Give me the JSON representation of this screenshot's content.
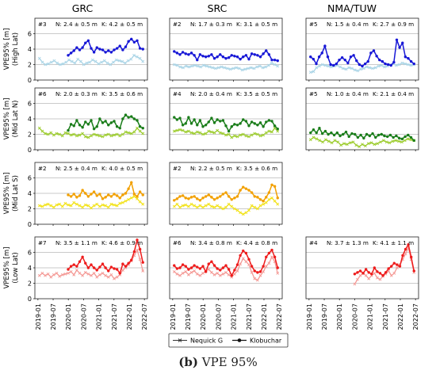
{
  "figure": {
    "caption_label": "(b)",
    "caption_text": "VPE 95%",
    "legend": [
      {
        "label": "Nequick G",
        "marker": "x"
      },
      {
        "label": "Klobuchar",
        "marker": "dot"
      }
    ]
  },
  "chart_data": {
    "type": "line",
    "columns": [
      "GRC",
      "SRC",
      "NMA/TUW"
    ],
    "rows": [
      {
        "ylabel": "VPE95% [m]",
        "sublabel": "(High Lat)",
        "nequick_color": "#a9d4e6",
        "klobuchar_color": "#1717d6"
      },
      {
        "ylabel": "VPE95% [m]",
        "sublabel": "(Mid Lat N)",
        "nequick_color": "#9ccc2c",
        "klobuchar_color": "#1a7d1a"
      },
      {
        "ylabel": "VPE95% [m]",
        "sublabel": "(Mid Lat S)",
        "nequick_color": "#f2e216",
        "klobuchar_color": "#f2a000"
      },
      {
        "ylabel": "VPE95% [m]",
        "sublabel": "(Low Lat)",
        "nequick_color": "#f49a96",
        "klobuchar_color": "#ee1c1c"
      }
    ],
    "ylim": [
      0,
      8
    ],
    "yticks": [
      0,
      2,
      4,
      6
    ],
    "grid": true,
    "xticks": [
      "2019-01",
      "2019-07",
      "2020-01",
      "2020-07",
      "2021-01",
      "2021-07",
      "2022-01",
      "2022-07"
    ],
    "panels": [
      {
        "row": 0,
        "col": 0,
        "label": "#3",
        "N": "N: 2.4 ± 0.5 m",
        "K": "K: 4.2 ± 0.5 m",
        "x_start": 2019.05,
        "x_end": 2022.45,
        "nequick": [
          2.8,
          2.3,
          2.0,
          2.1,
          2.3,
          2.5,
          2.2,
          2.0,
          2.1,
          2.3,
          2.6,
          2.4,
          2.2,
          2.7,
          2.4,
          2.0,
          2.2,
          2.3,
          2.6,
          2.4,
          2.1,
          2.3,
          2.5,
          2.2,
          2.0,
          2.3,
          2.6,
          2.5,
          2.4,
          2.2,
          2.5,
          2.7,
          3.2,
          3.0,
          2.8,
          2.4
        ],
        "klobuchar": [
          null,
          null,
          null,
          null,
          null,
          null,
          null,
          null,
          null,
          null,
          3.2,
          3.5,
          3.8,
          4.2,
          3.9,
          4.2,
          4.8,
          5.1,
          4.1,
          3.6,
          4.2,
          4.0,
          3.9,
          3.6,
          3.8,
          3.6,
          3.9,
          4.1,
          4.4,
          3.9,
          4.3,
          5.0,
          5.3,
          4.9,
          5.1,
          4.1,
          4.0
        ]
      },
      {
        "row": 0,
        "col": 1,
        "label": "#2",
        "N": "N: 1.7 ± 0.3 m",
        "K": "K: 3.1 ± 0.5 m",
        "x_start": 2019.05,
        "x_end": 2022.45,
        "nequick": [
          2.0,
          1.9,
          1.7,
          1.6,
          1.8,
          1.7,
          1.8,
          1.9,
          1.8,
          1.7,
          1.9,
          1.8,
          1.7,
          1.6,
          1.5,
          1.6,
          1.7,
          1.6,
          1.5,
          1.4,
          1.5,
          1.6,
          1.5,
          1.3,
          1.4,
          1.5,
          1.6,
          1.5,
          1.7,
          1.8,
          1.6,
          1.7,
          1.9,
          2.2,
          2.0,
          1.8
        ],
        "klobuchar": [
          3.7,
          3.5,
          3.3,
          3.6,
          3.4,
          3.3,
          3.5,
          3.2,
          2.6,
          3.3,
          3.1,
          3.0,
          3.1,
          3.3,
          2.8,
          3.0,
          3.3,
          3.0,
          2.8,
          2.9,
          3.2,
          3.1,
          3.0,
          2.7,
          3.0,
          3.2,
          2.7,
          3.4,
          3.3,
          3.2,
          3.0,
          3.4,
          3.8,
          3.3,
          2.6,
          2.6,
          2.5
        ]
      },
      {
        "row": 0,
        "col": 2,
        "label": "#5",
        "N": "N: 1.5 ± 0.4 m",
        "K": "K: 2.7 ± 0.9 m",
        "x_start": 2019.05,
        "x_end": 2022.45,
        "nequick": [
          1.0,
          1.1,
          1.6,
          1.8,
          2.0,
          1.9,
          1.8,
          1.7,
          1.8,
          1.9,
          1.7,
          1.5,
          1.4,
          1.6,
          1.5,
          1.3,
          1.2,
          1.4,
          1.5,
          1.7,
          1.6,
          1.5,
          1.6,
          1.8,
          1.9,
          1.7,
          1.8,
          2.0,
          2.1,
          1.9,
          2.0,
          2.2,
          2.1,
          2.0,
          1.9,
          2.0
        ],
        "klobuchar": [
          3.0,
          2.7,
          2.1,
          3.0,
          3.5,
          4.4,
          3.0,
          2.0,
          1.9,
          2.1,
          2.6,
          2.9,
          2.6,
          2.2,
          3.0,
          3.2,
          2.5,
          2.0,
          1.8,
          2.1,
          2.4,
          3.5,
          3.8,
          3.1,
          2.6,
          2.4,
          2.1,
          2.0,
          1.9,
          2.3,
          5.2,
          4.2,
          4.8,
          3.0,
          2.8,
          2.4,
          2.1
        ]
      },
      {
        "row": 1,
        "col": 0,
        "label": "#6",
        "N": "N: 2.0 ± 0.3 m",
        "K": "K: 3.5 ± 0.6 m",
        "x_start": 2019.05,
        "x_end": 2022.45,
        "nequick": [
          2.8,
          2.4,
          2.1,
          2.0,
          2.2,
          1.9,
          2.1,
          2.0,
          1.8,
          2.2,
          2.1,
          1.9,
          2.0,
          1.8,
          1.9,
          2.1,
          1.7,
          1.6,
          1.8,
          2.0,
          1.9,
          1.8,
          1.7,
          1.9,
          2.0,
          1.8,
          1.9,
          2.0,
          1.8,
          2.0,
          2.3,
          2.2,
          2.1,
          2.3,
          2.8,
          2.4,
          2.1
        ],
        "klobuchar": [
          null,
          null,
          null,
          null,
          null,
          null,
          null,
          null,
          null,
          null,
          2.5,
          3.3,
          3.1,
          3.8,
          3.2,
          2.9,
          3.6,
          3.3,
          3.8,
          2.7,
          3.0,
          4.0,
          3.5,
          3.7,
          3.2,
          3.5,
          3.7,
          3.0,
          2.8,
          4.0,
          4.5,
          4.2,
          4.3,
          4.0,
          3.8,
          3.0,
          2.8
        ]
      },
      {
        "row": 1,
        "col": 1,
        "label": "#4",
        "N": "N: 2.0 ± 0.4 m",
        "K": "K: 3.5 ± 0.5 m",
        "x_start": 2019.05,
        "x_end": 2022.45,
        "nequick": [
          2.4,
          2.5,
          2.6,
          2.5,
          2.3,
          2.4,
          2.2,
          2.1,
          2.3,
          2.2,
          2.0,
          2.1,
          2.4,
          2.3,
          2.2,
          2.5,
          2.2,
          2.1,
          1.9,
          2.0,
          1.6,
          1.8,
          1.7,
          1.9,
          2.0,
          1.8,
          1.7,
          1.9,
          2.1,
          2.0,
          1.8,
          1.9,
          2.2,
          2.4,
          2.3,
          2.8,
          2.4
        ],
        "klobuchar": [
          4.2,
          3.9,
          4.1,
          3.2,
          3.4,
          4.2,
          3.4,
          3.9,
          3.2,
          3.8,
          3.0,
          3.2,
          3.6,
          4.1,
          3.5,
          3.9,
          3.7,
          3.8,
          3.1,
          2.4,
          3.0,
          3.3,
          3.2,
          3.4,
          3.9,
          3.7,
          3.1,
          3.6,
          3.4,
          3.2,
          3.5,
          3.0,
          3.6,
          3.8,
          3.7,
          3.1,
          2.7
        ]
      },
      {
        "row": 1,
        "col": 2,
        "label": "#5",
        "N": "N: 1.0 ± 0.4 m",
        "K": "K: 2.1 ± 0.4 m",
        "x_start": 2019.05,
        "x_end": 2022.45,
        "nequick": [
          1.3,
          1.6,
          1.4,
          1.2,
          1.0,
          1.3,
          1.1,
          0.9,
          1.2,
          1.0,
          0.6,
          0.8,
          0.7,
          0.9,
          1.0,
          0.6,
          0.4,
          0.7,
          0.5,
          0.8,
          0.9,
          0.7,
          0.8,
          1.0,
          1.2,
          1.0,
          0.9,
          1.1,
          1.2,
          1.1,
          1.0,
          1.2,
          1.4,
          1.3,
          1.2
        ],
        "klobuchar": [
          2.2,
          2.6,
          2.2,
          2.8,
          2.1,
          2.4,
          2.0,
          2.2,
          1.9,
          2.2,
          1.8,
          2.0,
          2.3,
          1.7,
          2.1,
          2.0,
          1.6,
          1.9,
          1.5,
          2.0,
          1.8,
          2.1,
          1.6,
          1.9,
          2.0,
          1.8,
          1.7,
          1.9,
          1.6,
          1.8,
          1.5,
          1.4,
          1.7,
          1.9,
          1.6,
          1.2
        ]
      },
      {
        "row": 2,
        "col": 0,
        "label": "#2",
        "N": "N: 2.5 ± 0.4 m",
        "K": "K: 4.0 ± 0.5 m",
        "x_start": 2019.05,
        "x_end": 2022.45,
        "nequick": [
          2.4,
          2.3,
          2.5,
          2.6,
          2.4,
          2.2,
          2.5,
          2.6,
          2.3,
          2.7,
          2.5,
          2.4,
          2.8,
          2.6,
          2.4,
          2.2,
          2.5,
          2.4,
          2.1,
          2.4,
          2.6,
          2.3,
          2.5,
          2.4,
          2.2,
          2.6,
          2.5,
          2.4,
          2.7,
          2.8,
          3.0,
          3.2,
          3.4,
          3.6,
          3.3,
          2.9,
          2.6
        ],
        "klobuchar": [
          null,
          null,
          null,
          null,
          null,
          null,
          null,
          null,
          null,
          null,
          3.8,
          3.6,
          3.9,
          3.5,
          3.7,
          4.4,
          4.0,
          3.6,
          3.9,
          4.2,
          3.7,
          3.9,
          3.3,
          3.5,
          3.8,
          3.6,
          3.9,
          3.7,
          3.4,
          3.8,
          4.0,
          4.6,
          5.4,
          3.9,
          3.6,
          4.2,
          3.8
        ]
      },
      {
        "row": 2,
        "col": 1,
        "label": "#2",
        "N": "N: 2.2 ± 0.5 m",
        "K": "K: 3.5 ± 0.6 m",
        "x_start": 2019.05,
        "x_end": 2022.45,
        "nequick": [
          2.3,
          2.6,
          2.2,
          2.4,
          2.5,
          2.3,
          2.6,
          2.4,
          2.2,
          2.4,
          2.2,
          2.4,
          2.6,
          2.3,
          2.2,
          2.4,
          2.2,
          2.0,
          2.2,
          2.6,
          2.3,
          2.0,
          1.8,
          1.5,
          1.3,
          1.5,
          1.8,
          2.4,
          2.2,
          2.0,
          2.4,
          2.6,
          2.8,
          3.2,
          3.4,
          3.0,
          2.6
        ],
        "klobuchar": [
          3.1,
          3.3,
          3.6,
          3.7,
          3.4,
          3.3,
          3.5,
          3.6,
          3.3,
          3.1,
          3.4,
          3.6,
          3.8,
          3.5,
          3.2,
          3.4,
          3.6,
          3.9,
          4.1,
          3.6,
          3.2,
          3.4,
          3.6,
          4.4,
          4.8,
          4.6,
          4.4,
          4.1,
          3.6,
          3.5,
          3.2,
          3.0,
          3.5,
          4.1,
          5.1,
          4.9,
          3.4
        ]
      },
      {
        "row": 3,
        "col": 0,
        "label": "#7",
        "N": "N: 3.5 ± 1.1 m",
        "K": "K: 4.6 ± 0.9 m",
        "x_start": 2019.05,
        "x_end": 2022.45,
        "nequick": [
          3.0,
          3.3,
          3.0,
          3.2,
          2.8,
          3.1,
          3.3,
          2.9,
          3.1,
          3.2,
          3.3,
          3.5,
          3.1,
          3.7,
          3.3,
          3.0,
          3.4,
          3.2,
          3.0,
          3.3,
          2.8,
          3.1,
          3.3,
          3.0,
          2.8,
          3.1,
          2.6,
          2.8,
          3.1,
          3.7,
          4.0,
          4.4,
          4.9,
          5.6,
          6.3,
          5.1,
          3.6
        ],
        "klobuchar": [
          null,
          null,
          null,
          null,
          null,
          null,
          null,
          null,
          null,
          null,
          3.8,
          4.2,
          4.4,
          4.2,
          4.8,
          5.4,
          4.6,
          4.0,
          4.4,
          4.0,
          3.7,
          4.1,
          4.5,
          4.0,
          3.6,
          4.1,
          3.9,
          3.8,
          3.3,
          4.5,
          4.2,
          4.6,
          5.0,
          6.1,
          7.6,
          6.4,
          4.7
        ]
      },
      {
        "row": 3,
        "col": 1,
        "label": "#6",
        "N": "N: 3.4 ± 0.8 m",
        "K": "K: 4.4 ± 0.8 m",
        "x_start": 2019.05,
        "x_end": 2022.45,
        "nequick": [
          3.5,
          3.2,
          3.0,
          3.3,
          3.5,
          3.1,
          3.4,
          3.6,
          3.2,
          3.0,
          3.3,
          3.6,
          3.8,
          3.4,
          3.1,
          3.3,
          3.0,
          3.2,
          3.4,
          3.1,
          2.8,
          3.2,
          3.6,
          4.5,
          5.2,
          4.8,
          4.4,
          3.4,
          2.6,
          2.4,
          3.0,
          3.5,
          4.2,
          4.6,
          5.4,
          4.8,
          3.3
        ],
        "klobuchar": [
          4.3,
          3.9,
          4.0,
          4.4,
          4.2,
          3.8,
          4.0,
          4.3,
          4.1,
          3.9,
          4.2,
          3.5,
          4.5,
          4.8,
          4.3,
          3.9,
          3.7,
          4.0,
          4.3,
          3.8,
          3.0,
          3.7,
          4.4,
          5.6,
          6.2,
          5.9,
          5.1,
          4.2,
          3.6,
          3.4,
          3.5,
          4.2,
          5.4,
          5.9,
          6.3,
          5.4,
          4.0
        ]
      },
      {
        "row": 3,
        "col": 2,
        "label": "#4",
        "N": "N: 3.7 ± 1.3 m",
        "K": "K: 4.1 ± 1.1 m",
        "x_start": 2020.5,
        "x_end": 2022.45,
        "nequick": [
          1.9,
          2.5,
          3.0,
          3.3,
          3.0,
          2.6,
          3.0,
          3.3,
          2.7,
          2.5,
          2.9,
          3.2,
          3.6,
          3.0,
          3.3,
          4.0,
          4.4,
          5.1,
          5.8,
          6.6,
          5.1,
          3.4
        ],
        "klobuchar": [
          3.2,
          3.4,
          3.6,
          3.3,
          3.8,
          3.4,
          3.2,
          4.0,
          3.5,
          3.3,
          3.0,
          3.4,
          3.9,
          4.2,
          4.6,
          4.4,
          4.2,
          5.6,
          6.4,
          7.0,
          5.4,
          3.6
        ]
      }
    ]
  }
}
